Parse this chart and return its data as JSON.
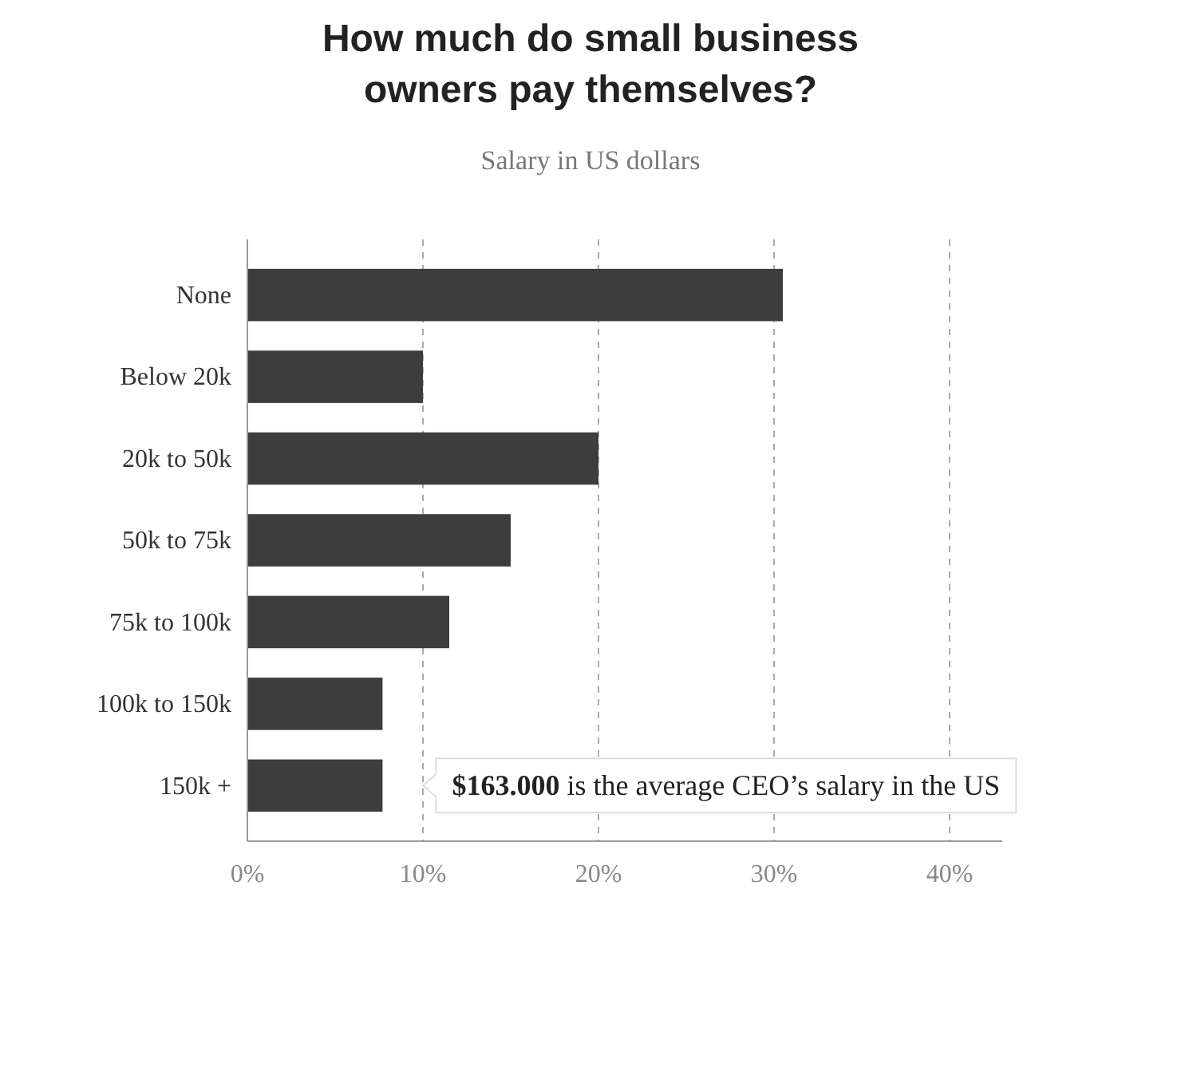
{
  "chart_data": {
    "type": "bar",
    "orientation": "horizontal",
    "title": "How much do small business owners pay themselves?",
    "subtitle": "Salary in US dollars",
    "categories": [
      "None",
      "Below 20k",
      "20k to 50k",
      "50k to 75k",
      "75k to 100k",
      "100k to 150k",
      "150k +"
    ],
    "values": [
      30.5,
      10,
      20,
      15,
      11.5,
      7.7,
      7.7
    ],
    "color": "#3d3d3d",
    "xlim": [
      0,
      43
    ],
    "xticks": [
      {
        "value": 0,
        "label": "0%"
      },
      {
        "value": 10,
        "label": "10%"
      },
      {
        "value": 20,
        "label": "20%"
      },
      {
        "value": 30,
        "label": "30%"
      },
      {
        "value": 40,
        "label": "40%"
      }
    ],
    "grid": "x",
    "annotations": [
      "$163.000 is the average CEO’s salary in the US"
    ]
  }
}
